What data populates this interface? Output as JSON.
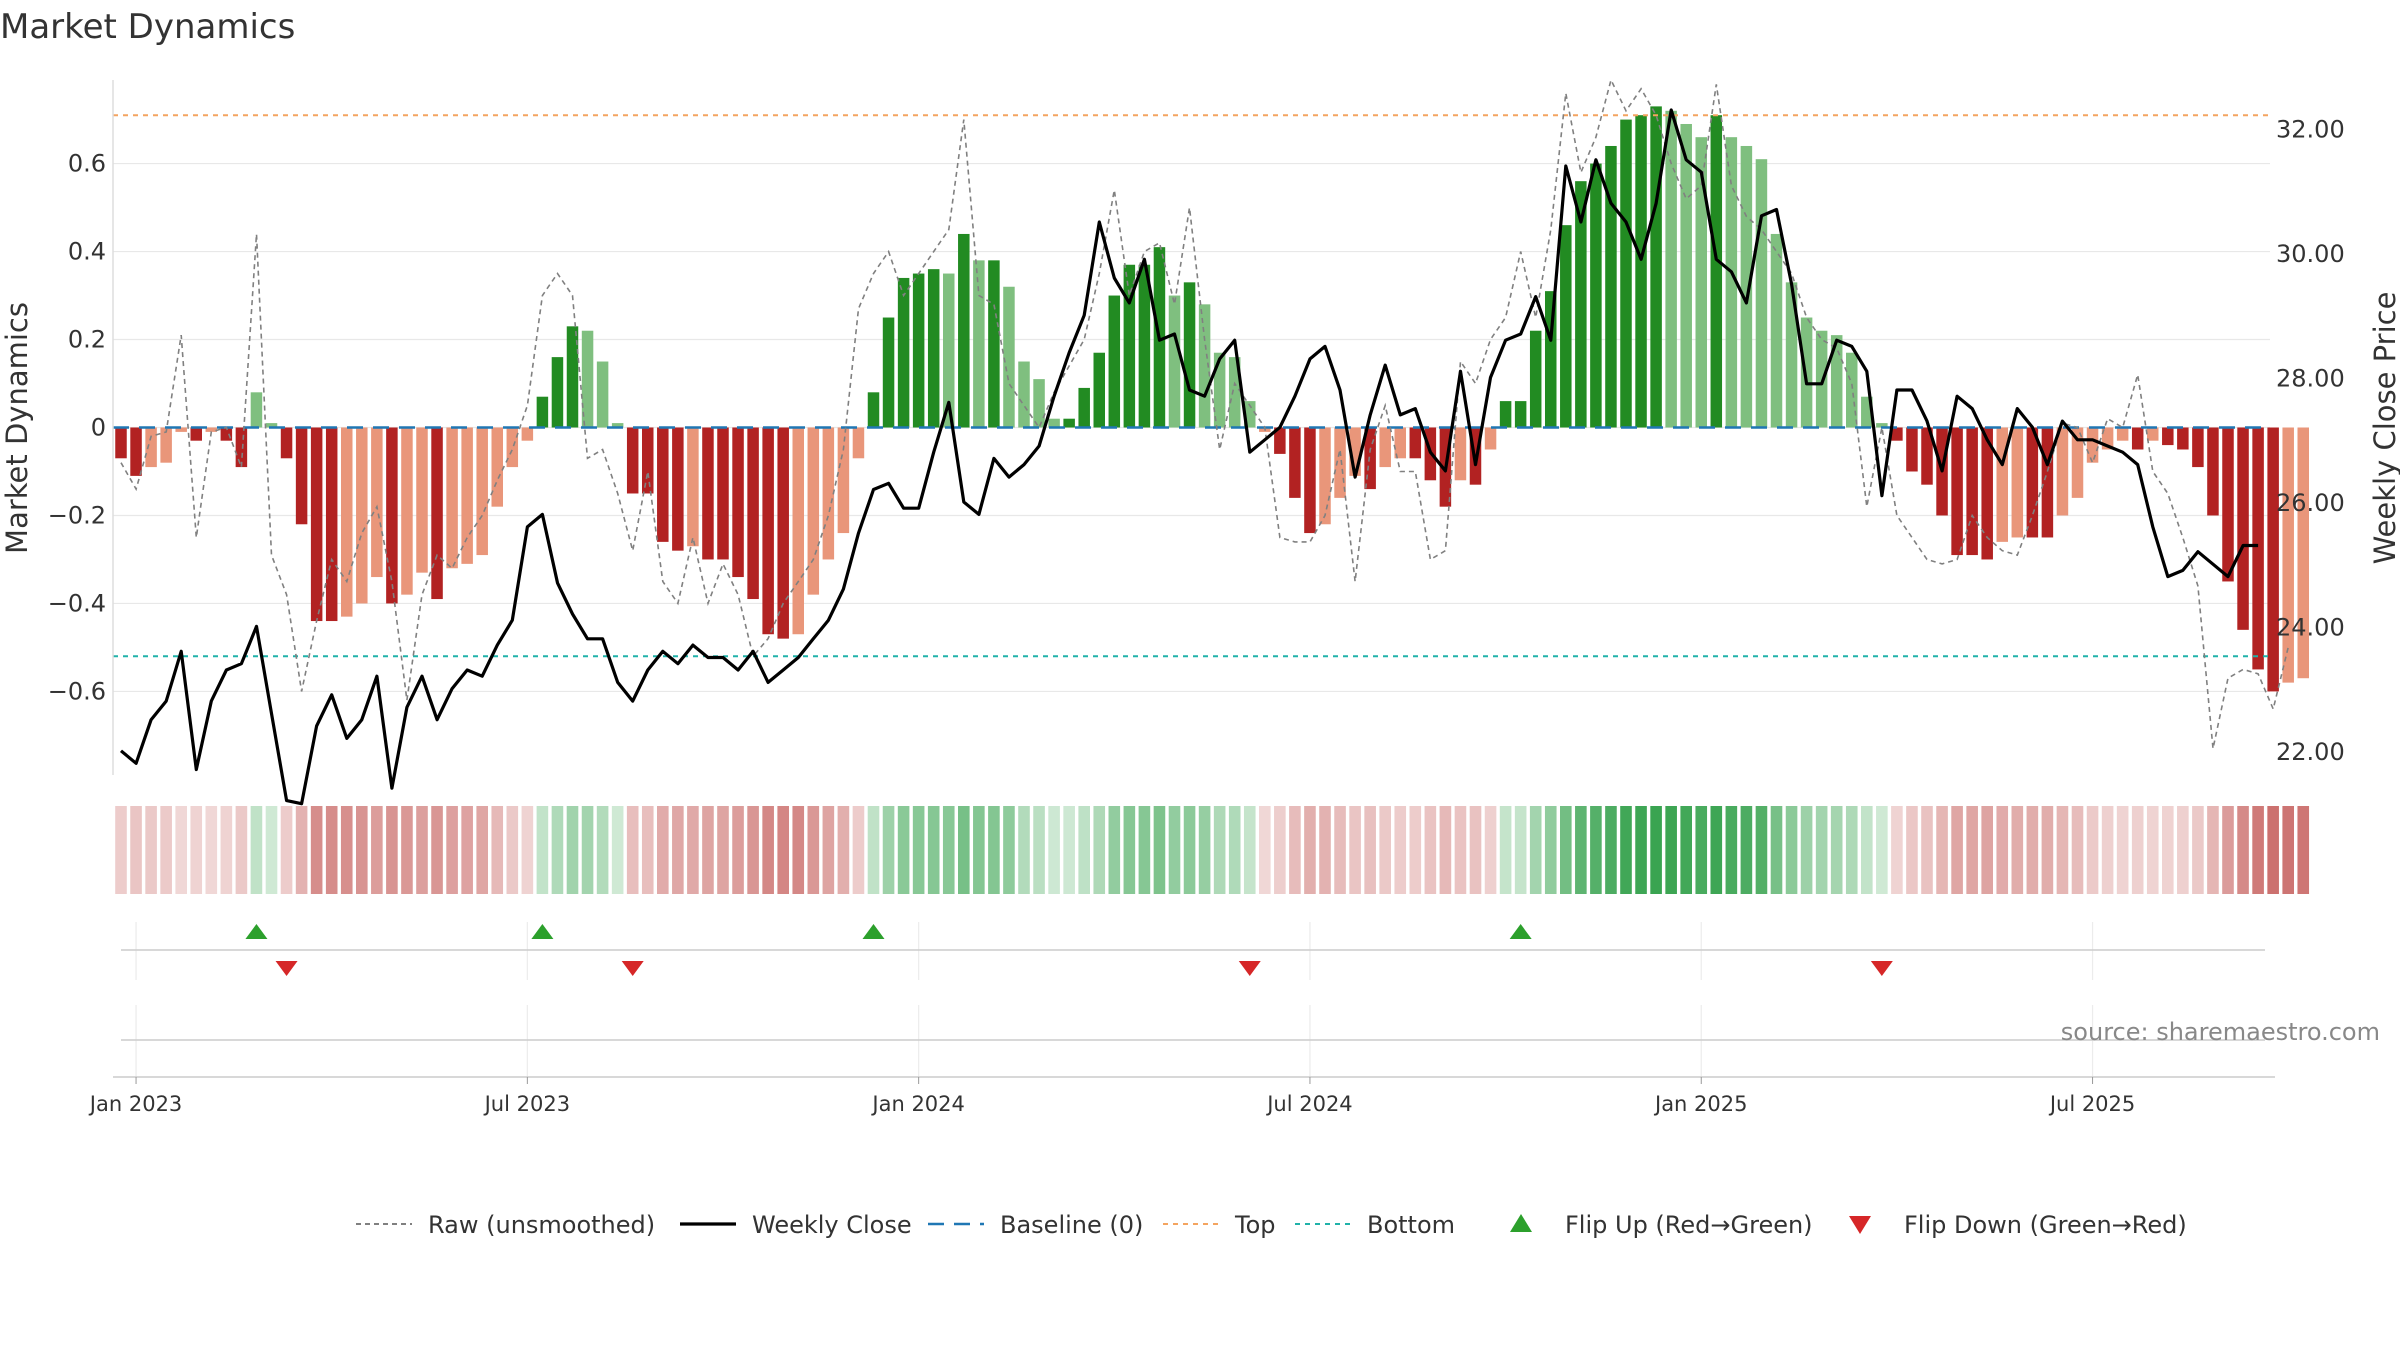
{
  "chart_data": {
    "type": "bar",
    "title": "Market Dynamics",
    "ylabel_left": "Market Dynamics",
    "ylabel_right": "Weekly Close Price",
    "source": "source: sharemaestro.com",
    "ylim_left": [
      -0.79,
      0.79
    ],
    "ylim_right": [
      20.8,
      33.2
    ],
    "yticks_left": [
      {
        "v": 0.6,
        "label": "0.6"
      },
      {
        "v": 0.4,
        "label": "0.4"
      },
      {
        "v": 0.2,
        "label": "0.2"
      },
      {
        "v": 0,
        "label": "0"
      },
      {
        "v": -0.2,
        "label": "−0.2"
      },
      {
        "v": -0.4,
        "label": "−0.4"
      },
      {
        "v": -0.6,
        "label": "−0.6"
      }
    ],
    "yticks_right": [
      {
        "v": 32,
        "label": "32.00"
      },
      {
        "v": 30,
        "label": "30.00"
      },
      {
        "v": 28,
        "label": "28.00"
      },
      {
        "v": 26,
        "label": "26.00"
      },
      {
        "v": 24,
        "label": "24.00"
      },
      {
        "v": 22,
        "label": "22.00"
      }
    ],
    "xticks": [
      {
        "i": 1,
        "label": "Jan 2023"
      },
      {
        "i": 27,
        "label": "Jul 2023"
      },
      {
        "i": 53,
        "label": "Jan 2024"
      },
      {
        "i": 79,
        "label": "Jul 2024"
      },
      {
        "i": 105,
        "label": "Jan 2025"
      },
      {
        "i": 131,
        "label": "Jul 2025"
      }
    ],
    "start_week": "2022-12-26",
    "top_line": 0.71,
    "bottom_line": -0.52,
    "baseline": 0,
    "market_dynamics": [
      -0.07,
      -0.11,
      -0.09,
      -0.08,
      -0.01,
      -0.03,
      -0.01,
      -0.03,
      -0.09,
      0.08,
      0.01,
      -0.07,
      -0.22,
      -0.44,
      -0.44,
      -0.43,
      -0.4,
      -0.34,
      -0.4,
      -0.38,
      -0.33,
      -0.39,
      -0.32,
      -0.31,
      -0.29,
      -0.18,
      -0.09,
      -0.03,
      0.07,
      0.16,
      0.23,
      0.22,
      0.15,
      0.01,
      -0.15,
      -0.15,
      -0.26,
      -0.28,
      -0.27,
      -0.3,
      -0.3,
      -0.34,
      -0.39,
      -0.47,
      -0.48,
      -0.47,
      -0.38,
      -0.3,
      -0.24,
      -0.07,
      0.08,
      0.25,
      0.34,
      0.35,
      0.36,
      0.35,
      0.44,
      0.38,
      0.38,
      0.32,
      0.15,
      0.11,
      0.02,
      0.02,
      0.09,
      0.17,
      0.3,
      0.37,
      0.37,
      0.41,
      0.3,
      0.33,
      0.28,
      0.17,
      0.16,
      0.06,
      -0.01,
      -0.06,
      -0.16,
      -0.24,
      -0.22,
      -0.16,
      -0.11,
      -0.14,
      -0.09,
      -0.07,
      -0.07,
      -0.12,
      -0.18,
      -0.12,
      -0.13,
      -0.05,
      0.06,
      0.06,
      0.22,
      0.31,
      0.46,
      0.56,
      0.6,
      0.64,
      0.7,
      0.71,
      0.73,
      0.72,
      0.69,
      0.66,
      0.71,
      0.66,
      0.64,
      0.61,
      0.44,
      0.33,
      0.25,
      0.22,
      0.21,
      0.17,
      0.07,
      0.01,
      -0.03,
      -0.1,
      -0.13,
      -0.2,
      -0.29,
      -0.29,
      -0.3,
      -0.26,
      -0.25,
      -0.25,
      -0.25,
      -0.2,
      -0.16,
      -0.08,
      -0.05,
      -0.03,
      -0.05,
      -0.03,
      -0.04,
      -0.05,
      -0.09,
      -0.2,
      -0.35,
      -0.46,
      -0.55,
      -0.6,
      -0.58,
      -0.57
    ],
    "raw_unsmoothed": [
      -0.08,
      -0.14,
      -0.02,
      -0.01,
      0.21,
      -0.25,
      -0.01,
      0.0,
      -0.09,
      0.44,
      -0.29,
      -0.38,
      -0.6,
      -0.44,
      -0.3,
      -0.35,
      -0.24,
      -0.18,
      -0.35,
      -0.62,
      -0.38,
      -0.29,
      -0.32,
      -0.25,
      -0.2,
      -0.12,
      -0.05,
      0.05,
      0.3,
      0.35,
      0.3,
      -0.07,
      -0.05,
      -0.15,
      -0.28,
      -0.1,
      -0.35,
      -0.4,
      -0.25,
      -0.4,
      -0.31,
      -0.38,
      -0.52,
      -0.48,
      -0.4,
      -0.35,
      -0.3,
      -0.2,
      -0.05,
      0.27,
      0.35,
      0.4,
      0.3,
      0.35,
      0.4,
      0.45,
      0.7,
      0.3,
      0.28,
      0.1,
      0.05,
      0.0,
      0.08,
      0.14,
      0.2,
      0.35,
      0.54,
      0.3,
      0.4,
      0.42,
      0.28,
      0.5,
      0.2,
      -0.05,
      0.1,
      0.05,
      0.0,
      -0.25,
      -0.26,
      -0.26,
      -0.2,
      -0.05,
      -0.35,
      -0.05,
      0.05,
      -0.1,
      -0.1,
      -0.3,
      -0.28,
      0.15,
      0.1,
      0.2,
      0.25,
      0.4,
      0.25,
      0.45,
      0.76,
      0.58,
      0.66,
      0.79,
      0.72,
      0.77,
      0.71,
      0.6,
      0.52,
      0.55,
      0.78,
      0.55,
      0.48,
      0.45,
      0.4,
      0.35,
      0.25,
      0.2,
      0.18,
      0.1,
      -0.18,
      0.0,
      -0.2,
      -0.25,
      -0.3,
      -0.31,
      -0.3,
      -0.2,
      -0.25,
      -0.28,
      -0.29,
      -0.2,
      -0.1,
      0.01,
      0.0,
      -0.08,
      0.02,
      0.0,
      0.12,
      -0.1,
      -0.15,
      -0.25,
      -0.36,
      -0.73,
      -0.57,
      -0.55,
      -0.56,
      -0.64,
      -0.5
    ],
    "weekly_close": [
      22.0,
      21.8,
      22.5,
      22.8,
      23.6,
      21.7,
      22.8,
      23.3,
      23.4,
      24.0,
      22.6,
      21.2,
      21.15,
      22.4,
      22.9,
      22.2,
      22.5,
      23.2,
      21.4,
      22.7,
      23.2,
      22.5,
      23.0,
      23.3,
      23.2,
      23.7,
      24.1,
      25.6,
      25.8,
      24.7,
      24.2,
      23.8,
      23.8,
      23.1,
      22.8,
      23.3,
      23.6,
      23.4,
      23.7,
      23.5,
      23.5,
      23.3,
      23.6,
      23.1,
      23.3,
      23.5,
      23.8,
      24.1,
      24.6,
      25.5,
      26.2,
      26.3,
      25.9,
      25.9,
      26.8,
      27.6,
      26.0,
      25.8,
      26.7,
      26.4,
      26.6,
      26.9,
      27.7,
      28.4,
      29.0,
      30.5,
      29.6,
      29.2,
      29.9,
      28.6,
      28.7,
      27.8,
      27.7,
      28.3,
      28.6,
      26.8,
      27.0,
      27.2,
      27.7,
      28.3,
      28.5,
      27.8,
      26.4,
      27.4,
      28.2,
      27.4,
      27.5,
      26.8,
      26.5,
      28.1,
      26.6,
      28.0,
      28.6,
      28.7,
      29.3,
      28.6,
      31.4,
      30.5,
      31.5,
      30.8,
      30.5,
      29.9,
      30.8,
      32.3,
      31.5,
      31.3,
      29.9,
      29.7,
      29.2,
      30.6,
      30.7,
      29.5,
      27.9,
      27.9,
      28.6,
      28.5,
      28.1,
      26.1,
      27.8,
      27.8,
      27.3,
      26.5,
      27.7,
      27.5,
      27.0,
      26.6,
      27.5,
      27.2,
      26.6,
      27.3,
      27.0,
      27.0,
      26.9,
      26.8,
      26.6,
      25.6,
      24.8,
      24.9,
      25.2,
      25.0,
      24.8,
      25.3,
      25.3
    ],
    "flips_up": [
      9,
      28,
      50,
      93
    ],
    "flips_down": [
      11,
      34,
      75,
      117
    ],
    "legend": [
      {
        "key": "raw",
        "label": "Raw (unsmoothed)"
      },
      {
        "key": "close",
        "label": "Weekly Close"
      },
      {
        "key": "baseline",
        "label": "Baseline (0)"
      },
      {
        "key": "top",
        "label": "Top"
      },
      {
        "key": "bottom",
        "label": "Bottom"
      },
      {
        "key": "flip-up",
        "label": "Flip Up (Red→Green)"
      },
      {
        "key": "flip-down",
        "label": "Flip Down (Green→Red)"
      }
    ],
    "legend_placement": "bottom-center",
    "colors": {
      "green_strong": "#228b22",
      "green_light": "#7fbf7f",
      "red_strong": "#b22222",
      "red_light": "#e9967a",
      "close_line": "#000000",
      "raw_line": "#808080",
      "baseline": "#1f77b4",
      "top": "#f4a460",
      "bottom": "#20b2aa",
      "flip_up": "#2ca02c",
      "flip_down": "#d62728",
      "grid": "#e8e8e8"
    }
  }
}
